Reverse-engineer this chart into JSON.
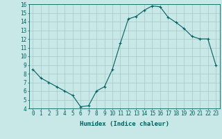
{
  "x": [
    0,
    1,
    2,
    3,
    4,
    5,
    6,
    7,
    8,
    9,
    10,
    11,
    12,
    13,
    14,
    15,
    16,
    17,
    18,
    19,
    20,
    21,
    22,
    23
  ],
  "y": [
    8.5,
    7.5,
    7.0,
    6.5,
    6.0,
    5.5,
    4.2,
    4.3,
    6.0,
    6.5,
    8.5,
    11.5,
    14.3,
    14.6,
    15.3,
    15.8,
    15.7,
    14.5,
    13.9,
    13.2,
    12.3,
    12.0,
    12.0,
    9.0
  ],
  "line_color": "#006060",
  "marker": "+",
  "marker_size": 3,
  "marker_lw": 0.8,
  "line_width": 0.8,
  "bg_color": "#c8e8e8",
  "grid_color": "#a8c8c8",
  "xlabel": "Humidex (Indice chaleur)",
  "xlim": [
    -0.5,
    23.5
  ],
  "ylim": [
    4,
    16
  ],
  "yticks": [
    4,
    5,
    6,
    7,
    8,
    9,
    10,
    11,
    12,
    13,
    14,
    15,
    16
  ],
  "xticks": [
    0,
    1,
    2,
    3,
    4,
    5,
    6,
    7,
    8,
    9,
    10,
    11,
    12,
    13,
    14,
    15,
    16,
    17,
    18,
    19,
    20,
    21,
    22,
    23
  ],
  "label_fontsize": 6.5,
  "tick_fontsize": 5.5
}
